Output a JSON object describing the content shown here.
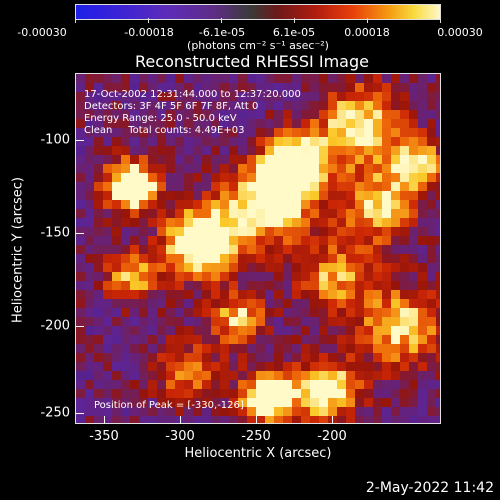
{
  "colorbar": {
    "tick_labels": [
      "-0.00030",
      "-0.00018",
      "-6.1e-05",
      "6.1e-05",
      "0.00018",
      "0.00030"
    ],
    "units": "(photons cm⁻² s⁻¹ asec⁻²)"
  },
  "title": "Reconstructed RHESSI Image",
  "info": {
    "time_range": "17-Oct-2002 12:31:44.000 to 12:37:20.000",
    "detectors": "Detectors: 3F 4F 5F 6F 7F 8F, Att 0",
    "energy": "Energy Range: 25.0 - 50.0 keV",
    "method": "Clean     Total counts: 4.49E+03"
  },
  "peak": "Position of Peak = [-330,-126]",
  "x_axis": {
    "label": "Heliocentric X (arcsec)",
    "tick_labels": [
      "-350",
      "-300",
      "-250",
      "-200"
    ]
  },
  "y_axis": {
    "label": "Heliocentric Y (arcsec)",
    "tick_labels": [
      "-100",
      "-150",
      "-200",
      "-250"
    ]
  },
  "timestamp": "2-May-2022 11:42",
  "colors": {
    "background": "#000000",
    "foreground": "#ffffff"
  }
}
